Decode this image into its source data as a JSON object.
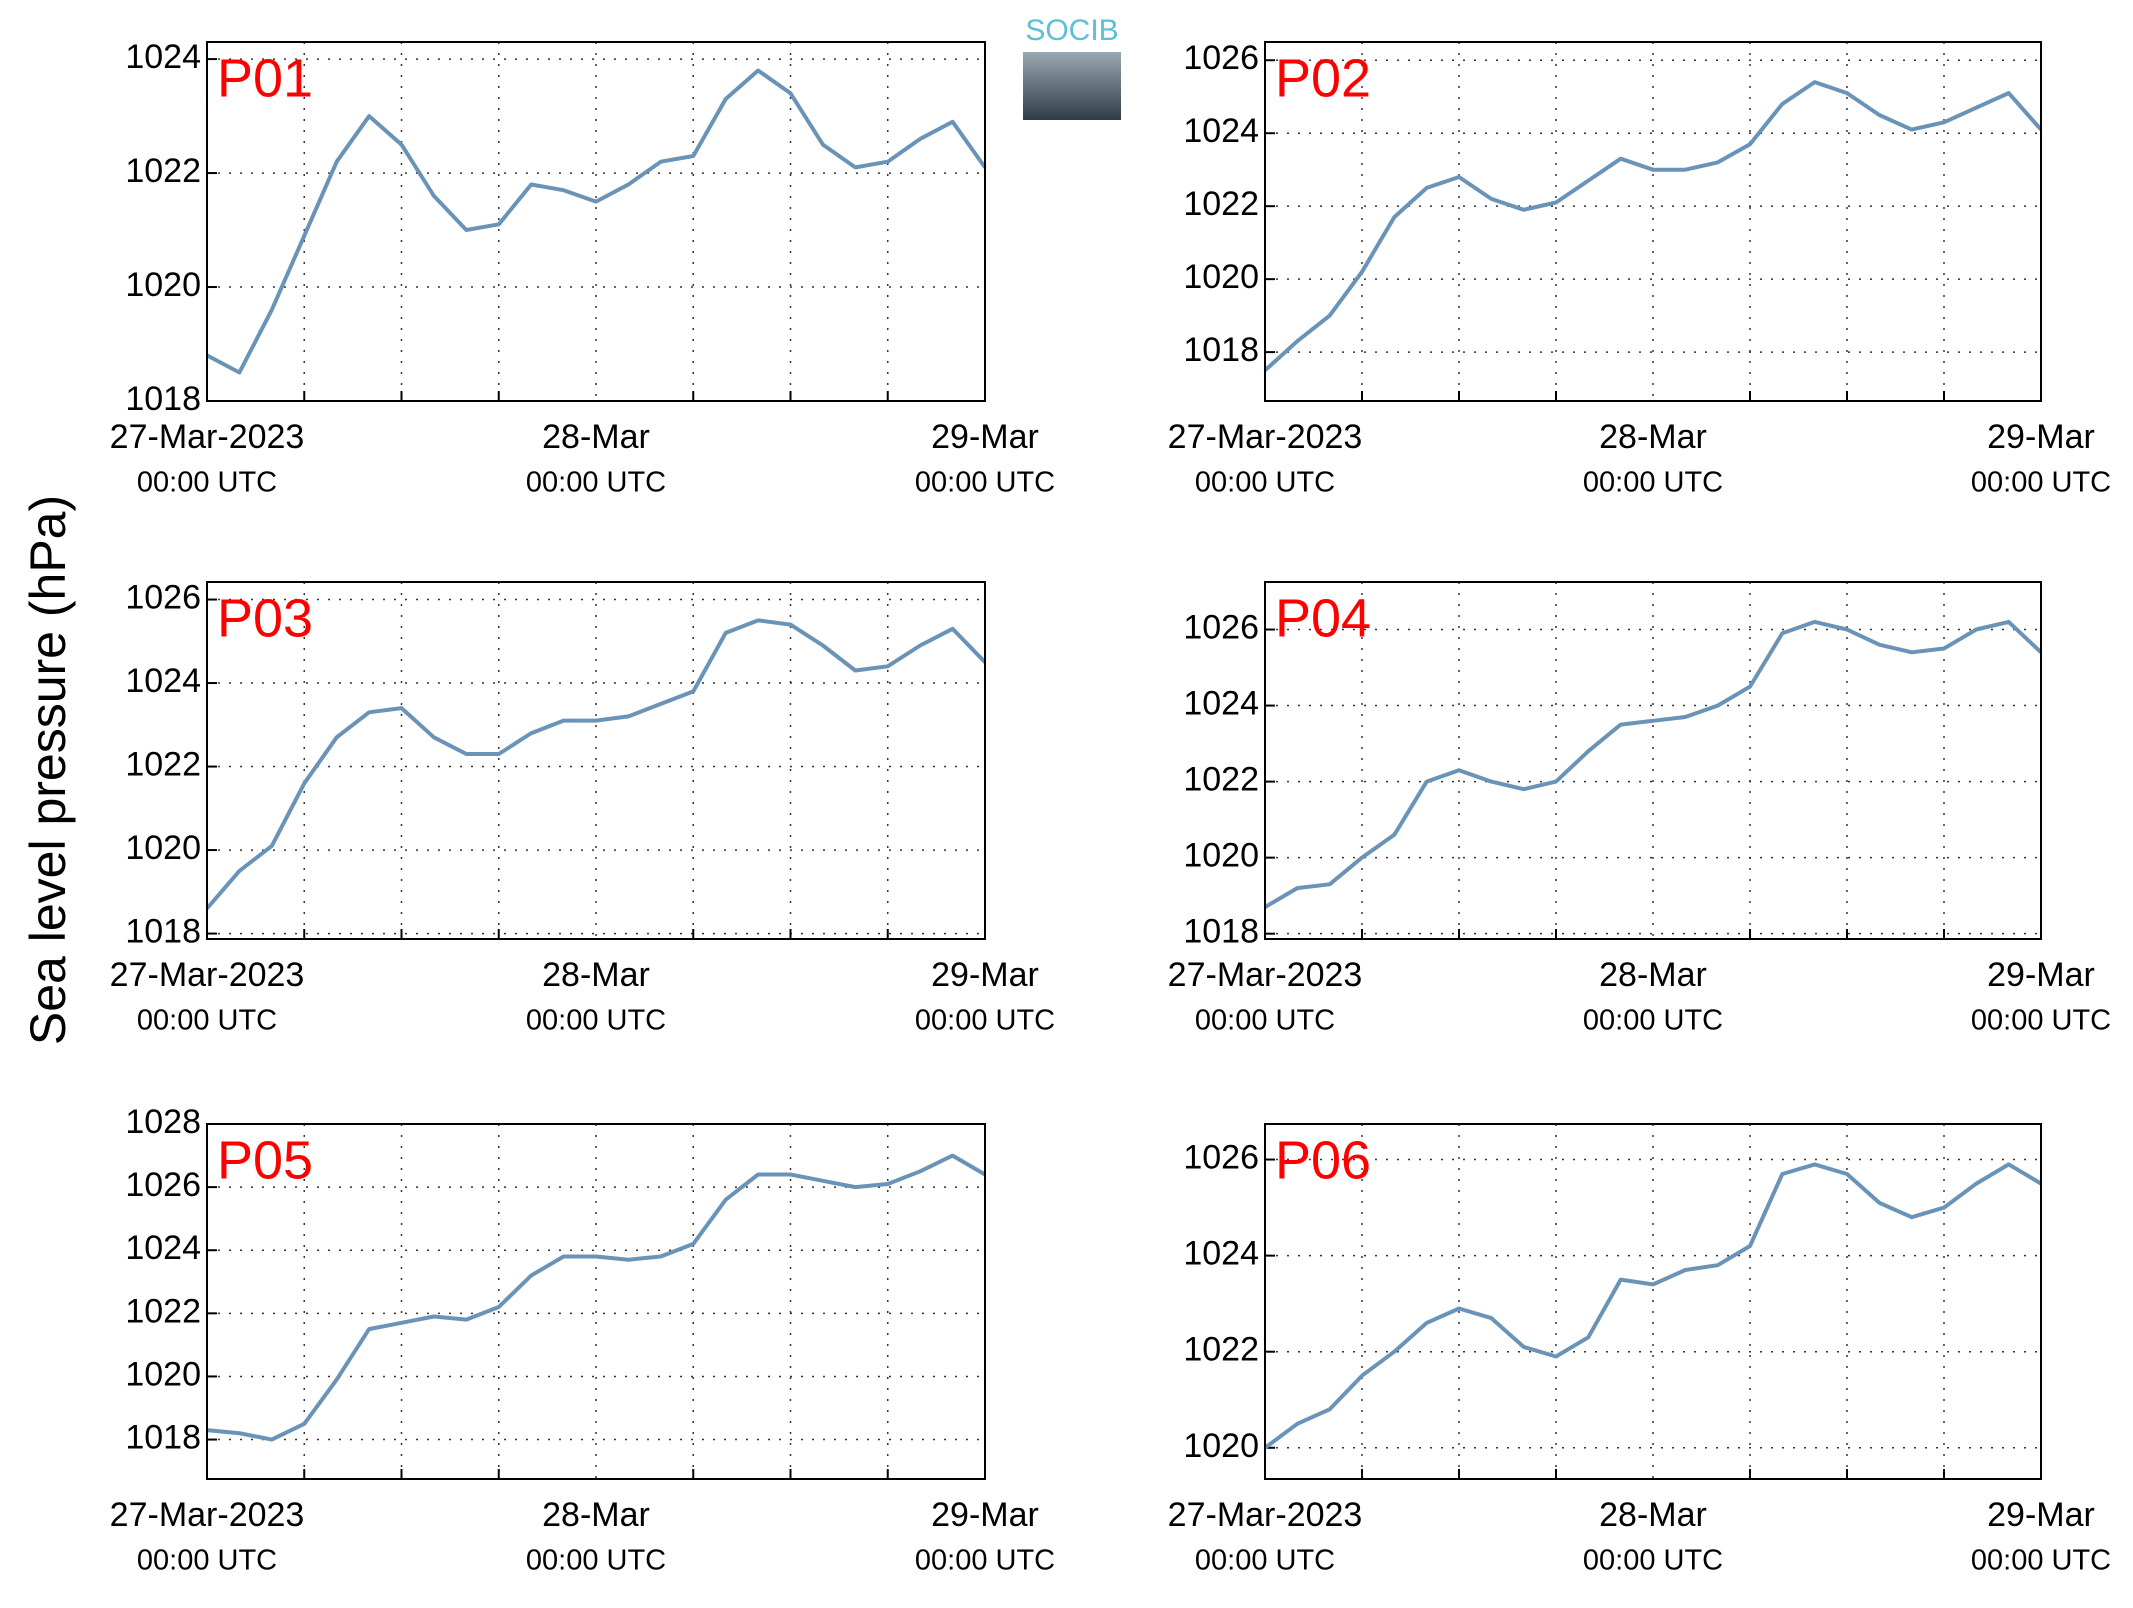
{
  "logo": "SOCIB",
  "ylabel": "Sea level pressure (hPa)",
  "chart_data": [
    {
      "type": "line",
      "title": "P01",
      "color": "#6a93b8",
      "grid": true,
      "x": [
        0,
        2,
        4,
        6,
        8,
        10,
        12,
        14,
        16,
        18,
        20,
        22,
        24,
        26,
        28,
        30,
        32,
        34,
        36,
        38,
        40,
        42,
        44,
        46,
        48
      ],
      "values": [
        1018.8,
        1018.5,
        1019.6,
        1020.9,
        1022.2,
        1023.0,
        1022.5,
        1021.6,
        1021.0,
        1021.1,
        1021.8,
        1021.7,
        1021.5,
        1021.8,
        1022.2,
        1022.3,
        1023.3,
        1023.8,
        1023.4,
        1022.5,
        1022.1,
        1022.2,
        1022.6,
        1022.9,
        1022.1
      ],
      "xlim": [
        0,
        48
      ],
      "xticks": [
        {
          "value": 0,
          "label": "27-Mar-2023",
          "sublabel": "00:00 UTC"
        },
        {
          "value": 24,
          "label": "28-Mar",
          "sublabel": "00:00 UTC"
        },
        {
          "value": 48,
          "label": "29-Mar",
          "sublabel": "00:00 UTC"
        }
      ],
      "x_minor_ticks": [
        6,
        12,
        18,
        30,
        36,
        42
      ],
      "ylim": [
        1018,
        1024.3
      ],
      "yticks": [
        1018,
        1020,
        1022,
        1024
      ]
    },
    {
      "type": "line",
      "title": "P02",
      "color": "#6a93b8",
      "grid": true,
      "x": [
        0,
        2,
        4,
        6,
        8,
        10,
        12,
        14,
        16,
        18,
        20,
        22,
        24,
        26,
        28,
        30,
        32,
        34,
        36,
        38,
        40,
        42,
        44,
        46,
        48
      ],
      "values": [
        1017.5,
        1018.3,
        1019.0,
        1020.2,
        1021.7,
        1022.5,
        1022.8,
        1022.2,
        1021.9,
        1022.1,
        1022.7,
        1023.3,
        1023.0,
        1023.0,
        1023.2,
        1023.7,
        1024.8,
        1025.4,
        1025.1,
        1024.5,
        1024.1,
        1024.3,
        1024.7,
        1025.1,
        1024.1
      ],
      "xlim": [
        0,
        48
      ],
      "xticks": [
        {
          "value": 0,
          "label": "27-Mar-2023",
          "sublabel": "00:00 UTC"
        },
        {
          "value": 24,
          "label": "28-Mar",
          "sublabel": "00:00 UTC"
        },
        {
          "value": 48,
          "label": "29-Mar",
          "sublabel": "00:00 UTC"
        }
      ],
      "x_minor_ticks": [
        6,
        12,
        18,
        30,
        36,
        42
      ],
      "ylim": [
        1016.66,
        1026.5
      ],
      "yticks": [
        1018,
        1020,
        1022,
        1024,
        1026
      ]
    },
    {
      "type": "line",
      "title": "P03",
      "color": "#6a93b8",
      "grid": true,
      "x": [
        0,
        2,
        4,
        6,
        8,
        10,
        12,
        14,
        16,
        18,
        20,
        22,
        24,
        26,
        28,
        30,
        32,
        34,
        36,
        38,
        40,
        42,
        44,
        46,
        48
      ],
      "values": [
        1018.6,
        1019.5,
        1020.1,
        1021.6,
        1022.7,
        1023.3,
        1023.4,
        1022.7,
        1022.3,
        1022.3,
        1022.8,
        1023.1,
        1023.1,
        1023.2,
        1023.5,
        1023.8,
        1025.2,
        1025.5,
        1025.4,
        1024.9,
        1024.3,
        1024.4,
        1024.9,
        1025.3,
        1024.5
      ],
      "xlim": [
        0,
        48
      ],
      "xticks": [
        {
          "value": 0,
          "label": "27-Mar-2023",
          "sublabel": "00:00 UTC"
        },
        {
          "value": 24,
          "label": "28-Mar",
          "sublabel": "00:00 UTC"
        },
        {
          "value": 48,
          "label": "29-Mar",
          "sublabel": "00:00 UTC"
        }
      ],
      "x_minor_ticks": [
        6,
        12,
        18,
        30,
        36,
        42
      ],
      "ylim": [
        1017.87,
        1026.42
      ],
      "yticks": [
        1018,
        1020,
        1022,
        1024,
        1026
      ]
    },
    {
      "type": "line",
      "title": "P04",
      "color": "#6a93b8",
      "grid": true,
      "x": [
        0,
        2,
        4,
        6,
        8,
        10,
        12,
        14,
        16,
        18,
        20,
        22,
        24,
        26,
        28,
        30,
        32,
        34,
        36,
        38,
        40,
        42,
        44,
        46,
        48
      ],
      "values": [
        1018.7,
        1019.2,
        1019.3,
        1020.0,
        1020.6,
        1022.0,
        1022.3,
        1022.0,
        1021.8,
        1022.0,
        1022.8,
        1023.5,
        1023.6,
        1023.7,
        1024.0,
        1024.5,
        1025.9,
        1026.2,
        1026.0,
        1025.6,
        1025.4,
        1025.5,
        1026.0,
        1026.2,
        1025.4
      ],
      "xlim": [
        0,
        48
      ],
      "xticks": [
        {
          "value": 0,
          "label": "27-Mar-2023",
          "sublabel": "00:00 UTC"
        },
        {
          "value": 24,
          "label": "28-Mar",
          "sublabel": "00:00 UTC"
        },
        {
          "value": 48,
          "label": "29-Mar",
          "sublabel": "00:00 UTC"
        }
      ],
      "x_minor_ticks": [
        6,
        12,
        18,
        30,
        36,
        42
      ],
      "ylim": [
        1017.86,
        1027.25
      ],
      "yticks": [
        1018,
        1020,
        1022,
        1024,
        1026
      ]
    },
    {
      "type": "line",
      "title": "P05",
      "color": "#6a93b8",
      "grid": true,
      "x": [
        0,
        2,
        4,
        6,
        8,
        10,
        12,
        14,
        16,
        18,
        20,
        22,
        24,
        26,
        28,
        30,
        32,
        34,
        36,
        38,
        40,
        42,
        44,
        46,
        48
      ],
      "values": [
        1018.3,
        1018.2,
        1018.0,
        1018.5,
        1019.9,
        1021.5,
        1021.7,
        1021.9,
        1021.8,
        1022.2,
        1023.2,
        1023.8,
        1023.8,
        1023.7,
        1023.8,
        1024.2,
        1025.6,
        1026.4,
        1026.4,
        1026.2,
        1026.0,
        1026.1,
        1026.5,
        1027.0,
        1026.4
      ],
      "xlim": [
        0,
        48
      ],
      "xticks": [
        {
          "value": 0,
          "label": "27-Mar-2023",
          "sublabel": "00:00 UTC"
        },
        {
          "value": 24,
          "label": "28-Mar",
          "sublabel": "00:00 UTC"
        },
        {
          "value": 48,
          "label": "29-Mar",
          "sublabel": "00:00 UTC"
        }
      ],
      "x_minor_ticks": [
        6,
        12,
        18,
        30,
        36,
        42
      ],
      "ylim": [
        1016.75,
        1028
      ],
      "yticks": [
        1018,
        1020,
        1022,
        1024,
        1026,
        1028
      ]
    },
    {
      "type": "line",
      "title": "P06",
      "color": "#6a93b8",
      "grid": true,
      "x": [
        0,
        2,
        4,
        6,
        8,
        10,
        12,
        14,
        16,
        18,
        20,
        22,
        24,
        26,
        28,
        30,
        32,
        34,
        36,
        38,
        40,
        42,
        44,
        46,
        48
      ],
      "values": [
        1020.0,
        1020.5,
        1020.8,
        1021.5,
        1022.0,
        1022.6,
        1022.9,
        1022.7,
        1022.1,
        1021.9,
        1022.3,
        1023.5,
        1023.4,
        1023.7,
        1023.8,
        1024.2,
        1025.7,
        1025.9,
        1025.7,
        1025.1,
        1024.8,
        1025.0,
        1025.5,
        1025.9,
        1025.5
      ],
      "xlim": [
        0,
        48
      ],
      "xticks": [
        {
          "value": 0,
          "label": "27-Mar-2023",
          "sublabel": "00:00 UTC"
        },
        {
          "value": 24,
          "label": "28-Mar",
          "sublabel": "00:00 UTC"
        },
        {
          "value": 48,
          "label": "29-Mar",
          "sublabel": "00:00 UTC"
        }
      ],
      "x_minor_ticks": [
        6,
        12,
        18,
        30,
        36,
        42
      ],
      "ylim": [
        1019.35,
        1026.74
      ],
      "yticks": [
        1020,
        1022,
        1024,
        1026
      ]
    }
  ]
}
